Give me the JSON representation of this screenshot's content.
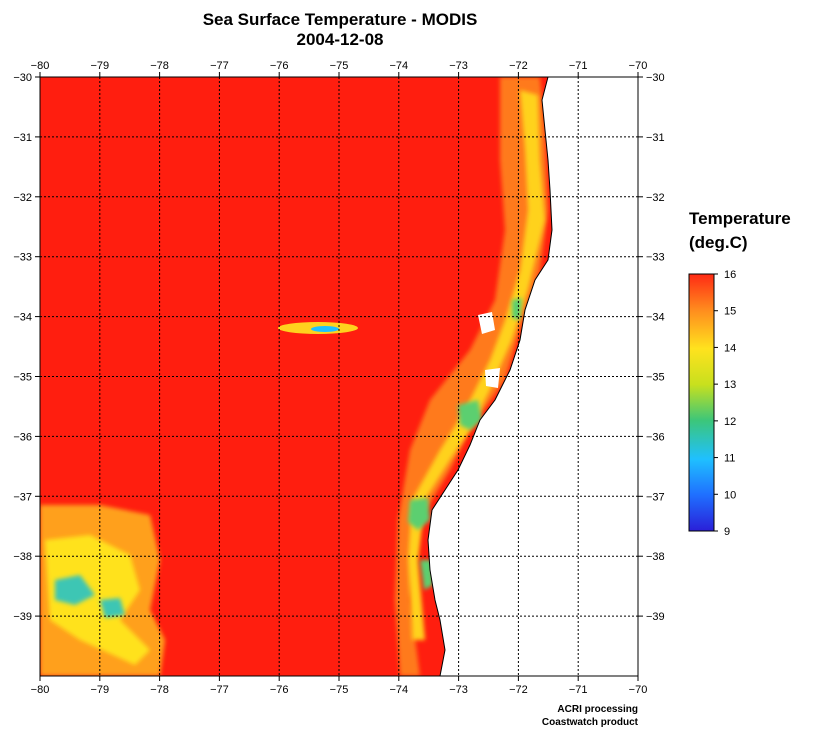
{
  "title": {
    "line1": "Sea Surface Temperature - MODIS",
    "line2": "2004-12-08"
  },
  "chart_data": {
    "type": "heatmap",
    "variable": "Sea Surface Temperature",
    "date": "2004-12-08",
    "x_range": [
      -80,
      -70
    ],
    "y_range": [
      -40,
      -30
    ],
    "x_ticks": [
      -80,
      -79,
      -78,
      -77,
      -76,
      -75,
      -74,
      -73,
      -72,
      -71,
      -70
    ],
    "y_ticks": [
      -30,
      -31,
      -32,
      -33,
      -34,
      -35,
      -36,
      -37,
      -38,
      -39
    ],
    "grid": true,
    "colorbar": {
      "min": 9,
      "max": 16,
      "ticks": [
        9,
        10,
        11,
        12,
        13,
        14,
        15,
        16
      ],
      "stops": [
        "#2a1fd8",
        "#1f6fff",
        "#1fc0ff",
        "#3cc67a",
        "#c8e01e",
        "#ffe21e",
        "#ff8c1e",
        "#ff2a14"
      ]
    },
    "background_color": "#ff1e0f",
    "land_color": "#ffffff"
  },
  "legend": {
    "line1": "Temperature",
    "line2": "(deg.C)"
  },
  "credit": {
    "line1": "ACRI processing",
    "line2": "Coastwatch product"
  }
}
